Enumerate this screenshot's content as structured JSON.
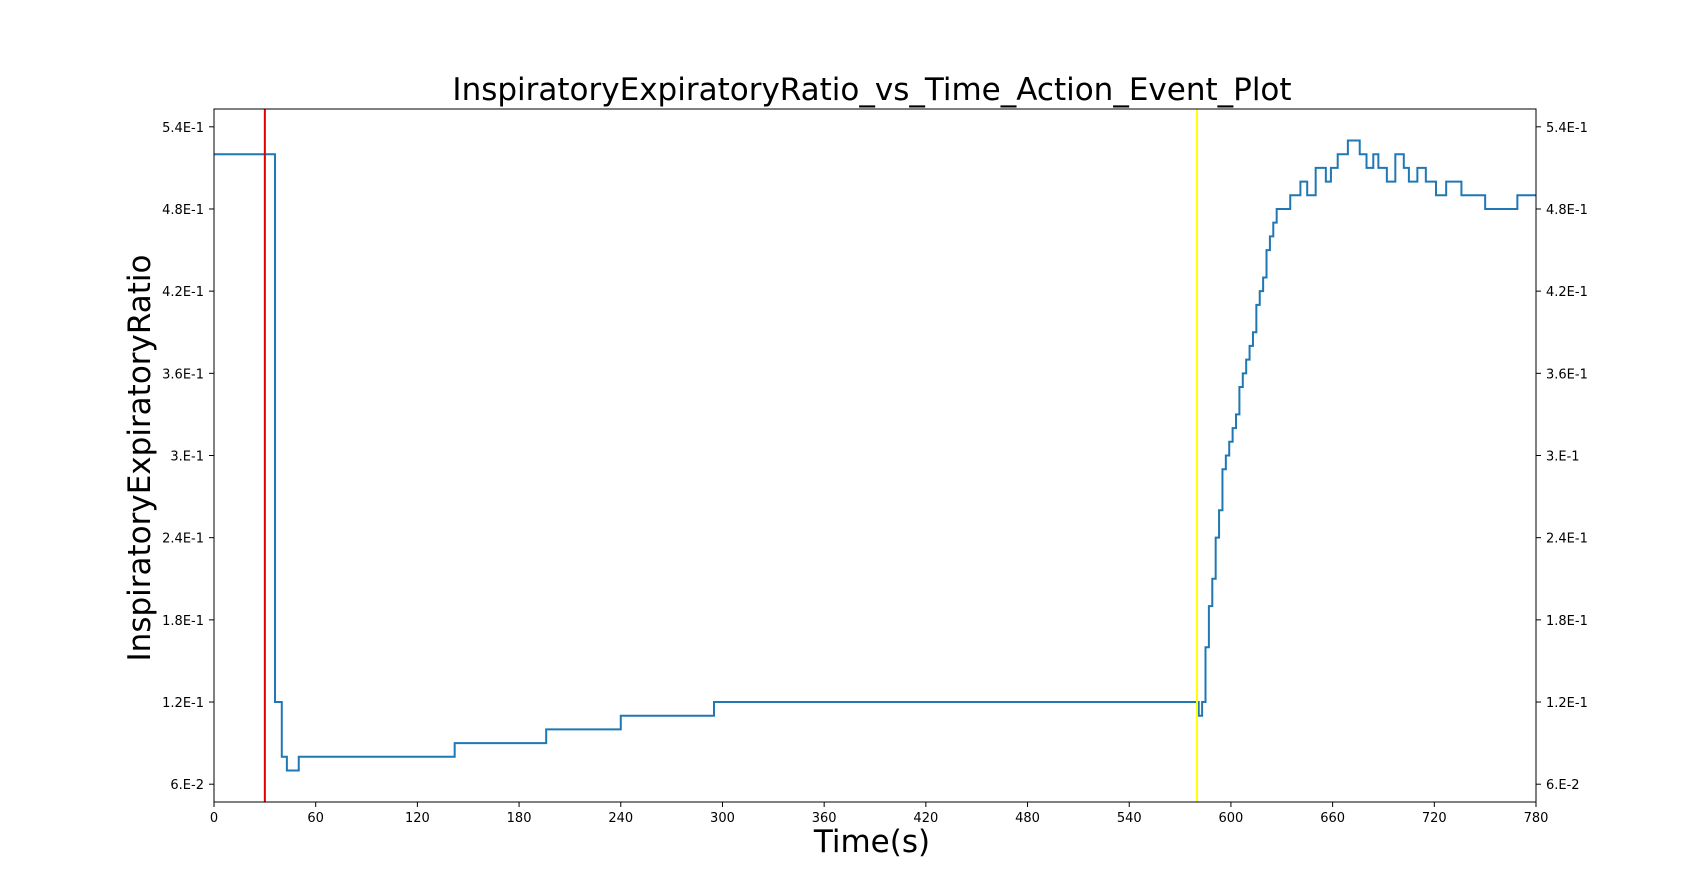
{
  "chart_data": {
    "type": "line",
    "title": "InspiratoryExpiratoryRatio_vs_Time_Action_Event_Plot",
    "xlabel": "Time(s)",
    "ylabel": "InspiratoryExpiratoryRatio",
    "xlim": [
      0,
      780
    ],
    "ylim": [
      0.047,
      0.553
    ],
    "x_ticks": [
      0,
      60,
      120,
      180,
      240,
      300,
      360,
      420,
      480,
      540,
      600,
      660,
      720,
      780
    ],
    "x_tick_labels": [
      "0",
      "60",
      "120",
      "180",
      "240",
      "300",
      "360",
      "420",
      "480",
      "540",
      "600",
      "660",
      "720",
      "780"
    ],
    "y_ticks": [
      0.06,
      0.12,
      0.18,
      0.24,
      0.3,
      0.36,
      0.42,
      0.48,
      0.54
    ],
    "y_tick_labels": [
      "6.E-2",
      "1.2E-1",
      "1.8E-1",
      "2.4E-1",
      "3.E-1",
      "3.6E-1",
      "4.2E-1",
      "4.8E-1",
      "5.4E-1"
    ],
    "right_axis_mirrored": true,
    "grid": false,
    "colors": {
      "series": "#1f77b4",
      "event_red": "#e00000",
      "event_yellow": "#ffff00"
    },
    "event_lines": [
      {
        "x": 30,
        "color": "#e00000"
      },
      {
        "x": 580,
        "color": "#ffff00"
      }
    ],
    "series": [
      {
        "color": "#1f77b4",
        "step": true,
        "x": [
          0,
          35,
          36,
          40,
          43,
          50,
          142,
          196,
          240,
          295,
          579,
          581,
          583,
          585,
          587,
          589,
          591,
          593,
          595,
          597,
          599,
          601,
          603,
          605,
          607,
          609,
          611,
          613,
          615,
          617,
          619,
          621,
          623,
          625,
          627,
          629,
          631,
          633,
          635,
          637,
          639,
          641,
          643,
          645,
          650,
          656,
          659,
          663,
          666,
          669,
          676,
          680,
          684,
          687,
          692,
          697,
          702,
          705,
          710,
          715,
          721,
          727,
          736,
          750,
          763,
          769,
          780
        ],
        "y": [
          0.52,
          0.52,
          0.12,
          0.08,
          0.07,
          0.08,
          0.09,
          0.1,
          0.11,
          0.12,
          0.12,
          0.11,
          0.12,
          0.16,
          0.19,
          0.21,
          0.24,
          0.26,
          0.29,
          0.3,
          0.31,
          0.32,
          0.33,
          0.35,
          0.36,
          0.37,
          0.38,
          0.39,
          0.41,
          0.42,
          0.43,
          0.45,
          0.46,
          0.47,
          0.48,
          0.48,
          0.48,
          0.48,
          0.49,
          0.49,
          0.49,
          0.5,
          0.5,
          0.49,
          0.51,
          0.5,
          0.51,
          0.52,
          0.52,
          0.53,
          0.52,
          0.51,
          0.52,
          0.51,
          0.5,
          0.52,
          0.51,
          0.5,
          0.51,
          0.5,
          0.49,
          0.5,
          0.49,
          0.48,
          0.48,
          0.49,
          0.49
        ]
      }
    ]
  }
}
